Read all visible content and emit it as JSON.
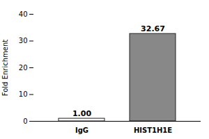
{
  "chart_data": {
    "type": "bar",
    "categories": [
      "IgG",
      "HIST1H1E"
    ],
    "values": [
      1.0,
      32.67
    ],
    "value_labels": [
      "1.00",
      "32.67"
    ],
    "data_labels": true,
    "colors": [
      "#ffffff",
      "#888888"
    ],
    "ylabel": "Fold Enrichment",
    "ylim": [
      0,
      40
    ],
    "yticks": [
      0,
      10,
      20,
      30,
      40
    ],
    "grid": false
  }
}
